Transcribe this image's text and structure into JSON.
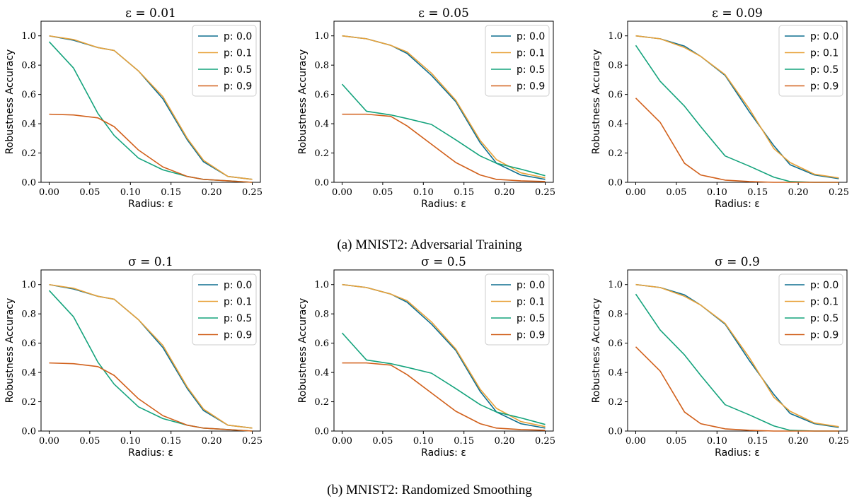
{
  "captions": [
    "(a) MNIST2: Adversarial Training",
    "(b) MNIST2: Randomized Smoothing"
  ],
  "colors": {
    "p: 0.0": "#0e6f8f",
    "p: 0.1": "#e8a23a",
    "p: 0.5": "#14a37c",
    "p: 0.9": "#d1601b"
  },
  "chart_data": [
    {
      "type": "line",
      "group": 0,
      "column": 0,
      "title": "ε = 0.01",
      "xlabel": "Radius: ε",
      "ylabel": "Robustness Accuracy",
      "xlim": [
        -0.01,
        0.26
      ],
      "ylim": [
        0.0,
        1.1
      ],
      "xticks": [
        0.0,
        0.05,
        0.1,
        0.15,
        0.2,
        0.25
      ],
      "xtick_labels": [
        "0.00",
        "0.05",
        "0.10",
        "0.15",
        "0.20",
        "0.25"
      ],
      "yticks": [
        0.0,
        0.2,
        0.4,
        0.6,
        0.8,
        1.0
      ],
      "ytick_labels": [
        "0.0",
        "0.2",
        "0.4",
        "0.6",
        "0.8",
        "1.0"
      ],
      "legend_position": "top-right",
      "x": [
        0.0,
        0.03,
        0.06,
        0.08,
        0.11,
        0.14,
        0.17,
        0.19,
        0.22,
        0.25
      ],
      "series": [
        {
          "name": "p: 0.0",
          "values": [
            1.0,
            0.97,
            0.92,
            0.9,
            0.76,
            0.57,
            0.29,
            0.14,
            0.04,
            0.02
          ]
        },
        {
          "name": "p: 0.1",
          "values": [
            1.0,
            0.975,
            0.92,
            0.9,
            0.76,
            0.585,
            0.3,
            0.15,
            0.04,
            0.02
          ]
        },
        {
          "name": "p: 0.5",
          "values": [
            0.96,
            0.78,
            0.47,
            0.32,
            0.165,
            0.085,
            0.04,
            0.02,
            0.01,
            0.0
          ]
        },
        {
          "name": "p: 0.9",
          "values": [
            0.465,
            0.46,
            0.44,
            0.38,
            0.22,
            0.105,
            0.04,
            0.02,
            0.01,
            0.0
          ]
        }
      ]
    },
    {
      "type": "line",
      "group": 0,
      "column": 1,
      "title": "ε = 0.05",
      "xlabel": "Radius: ε",
      "ylabel": "Robustness Accuracy",
      "xlim": [
        -0.01,
        0.26
      ],
      "ylim": [
        0.0,
        1.1
      ],
      "xticks": [
        0.0,
        0.05,
        0.1,
        0.15,
        0.2,
        0.25
      ],
      "xtick_labels": [
        "0.00",
        "0.05",
        "0.10",
        "0.15",
        "0.20",
        "0.25"
      ],
      "yticks": [
        0.0,
        0.2,
        0.4,
        0.6,
        0.8,
        1.0
      ],
      "ytick_labels": [
        "0.0",
        "0.2",
        "0.4",
        "0.6",
        "0.8",
        "1.0"
      ],
      "legend_position": "top-right",
      "x": [
        0.0,
        0.03,
        0.06,
        0.08,
        0.11,
        0.14,
        0.17,
        0.19,
        0.22,
        0.25
      ],
      "series": [
        {
          "name": "p: 0.0",
          "values": [
            1.0,
            0.98,
            0.935,
            0.88,
            0.73,
            0.55,
            0.27,
            0.13,
            0.05,
            0.02
          ]
        },
        {
          "name": "p: 0.1",
          "values": [
            1.0,
            0.98,
            0.935,
            0.89,
            0.745,
            0.56,
            0.285,
            0.155,
            0.065,
            0.03
          ]
        },
        {
          "name": "p: 0.5",
          "values": [
            0.67,
            0.485,
            0.46,
            0.435,
            0.395,
            0.29,
            0.18,
            0.13,
            0.09,
            0.045
          ]
        },
        {
          "name": "p: 0.9",
          "values": [
            0.465,
            0.465,
            0.45,
            0.385,
            0.26,
            0.135,
            0.05,
            0.02,
            0.01,
            0.005
          ]
        }
      ]
    },
    {
      "type": "line",
      "group": 0,
      "column": 2,
      "title": "ε = 0.09",
      "xlabel": "Radius: ε",
      "ylabel": "Robustness Accuracy",
      "xlim": [
        -0.01,
        0.26
      ],
      "ylim": [
        0.0,
        1.1
      ],
      "xticks": [
        0.0,
        0.05,
        0.1,
        0.15,
        0.2,
        0.25
      ],
      "xtick_labels": [
        "0.00",
        "0.05",
        "0.10",
        "0.15",
        "0.20",
        "0.25"
      ],
      "yticks": [
        0.0,
        0.2,
        0.4,
        0.6,
        0.8,
        1.0
      ],
      "ytick_labels": [
        "0.0",
        "0.2",
        "0.4",
        "0.6",
        "0.8",
        "1.0"
      ],
      "legend_position": "top-right",
      "x": [
        0.0,
        0.03,
        0.06,
        0.08,
        0.11,
        0.14,
        0.17,
        0.19,
        0.22,
        0.25
      ],
      "series": [
        {
          "name": "p: 0.0",
          "values": [
            1.0,
            0.98,
            0.93,
            0.86,
            0.73,
            0.48,
            0.25,
            0.12,
            0.05,
            0.025
          ]
        },
        {
          "name": "p: 0.1",
          "values": [
            1.0,
            0.98,
            0.92,
            0.86,
            0.735,
            0.5,
            0.23,
            0.135,
            0.055,
            0.03
          ]
        },
        {
          "name": "p: 0.5",
          "values": [
            0.935,
            0.69,
            0.52,
            0.38,
            0.18,
            0.11,
            0.035,
            0.005,
            0.0,
            0.0
          ]
        },
        {
          "name": "p: 0.9",
          "values": [
            0.575,
            0.41,
            0.13,
            0.05,
            0.015,
            0.005,
            0.0,
            0.0,
            0.0,
            0.0
          ]
        }
      ]
    },
    {
      "type": "line",
      "group": 1,
      "column": 0,
      "title": "σ = 0.1",
      "xlabel": "Radius: ε",
      "ylabel": "Robustness Accuracy",
      "xlim": [
        -0.01,
        0.26
      ],
      "ylim": [
        0.0,
        1.1
      ],
      "xticks": [
        0.0,
        0.05,
        0.1,
        0.15,
        0.2,
        0.25
      ],
      "xtick_labels": [
        "0.00",
        "0.05",
        "0.10",
        "0.15",
        "0.20",
        "0.25"
      ],
      "yticks": [
        0.0,
        0.2,
        0.4,
        0.6,
        0.8,
        1.0
      ],
      "ytick_labels": [
        "0.0",
        "0.2",
        "0.4",
        "0.6",
        "0.8",
        "1.0"
      ],
      "legend_position": "top-right",
      "x": [
        0.0,
        0.03,
        0.06,
        0.08,
        0.11,
        0.14,
        0.17,
        0.19,
        0.22,
        0.25
      ],
      "series": [
        {
          "name": "p: 0.0",
          "values": [
            1.0,
            0.97,
            0.92,
            0.9,
            0.76,
            0.57,
            0.29,
            0.14,
            0.04,
            0.02
          ]
        },
        {
          "name": "p: 0.1",
          "values": [
            1.0,
            0.975,
            0.92,
            0.9,
            0.76,
            0.585,
            0.3,
            0.15,
            0.04,
            0.02
          ]
        },
        {
          "name": "p: 0.5",
          "values": [
            0.96,
            0.78,
            0.47,
            0.32,
            0.165,
            0.085,
            0.04,
            0.02,
            0.01,
            0.0
          ]
        },
        {
          "name": "p: 0.9",
          "values": [
            0.465,
            0.46,
            0.44,
            0.38,
            0.22,
            0.105,
            0.04,
            0.02,
            0.01,
            0.0
          ]
        }
      ]
    },
    {
      "type": "line",
      "group": 1,
      "column": 1,
      "title": "σ = 0.5",
      "xlabel": "Radius: ε",
      "ylabel": "Robustness Accuracy",
      "xlim": [
        -0.01,
        0.26
      ],
      "ylim": [
        0.0,
        1.1
      ],
      "xticks": [
        0.0,
        0.05,
        0.1,
        0.15,
        0.2,
        0.25
      ],
      "xtick_labels": [
        "0.00",
        "0.05",
        "0.10",
        "0.15",
        "0.20",
        "0.25"
      ],
      "yticks": [
        0.0,
        0.2,
        0.4,
        0.6,
        0.8,
        1.0
      ],
      "ytick_labels": [
        "0.0",
        "0.2",
        "0.4",
        "0.6",
        "0.8",
        "1.0"
      ],
      "legend_position": "top-right",
      "x": [
        0.0,
        0.03,
        0.06,
        0.08,
        0.11,
        0.14,
        0.17,
        0.19,
        0.22,
        0.25
      ],
      "series": [
        {
          "name": "p: 0.0",
          "values": [
            1.0,
            0.98,
            0.935,
            0.88,
            0.73,
            0.55,
            0.27,
            0.13,
            0.05,
            0.02
          ]
        },
        {
          "name": "p: 0.1",
          "values": [
            1.0,
            0.98,
            0.935,
            0.89,
            0.745,
            0.56,
            0.285,
            0.155,
            0.065,
            0.03
          ]
        },
        {
          "name": "p: 0.5",
          "values": [
            0.67,
            0.485,
            0.46,
            0.435,
            0.395,
            0.29,
            0.18,
            0.13,
            0.09,
            0.045
          ]
        },
        {
          "name": "p: 0.9",
          "values": [
            0.465,
            0.465,
            0.45,
            0.385,
            0.26,
            0.135,
            0.05,
            0.02,
            0.01,
            0.005
          ]
        }
      ]
    },
    {
      "type": "line",
      "group": 1,
      "column": 2,
      "title": "σ = 0.9",
      "xlabel": "Radius: ε",
      "ylabel": "Robustness Accuracy",
      "xlim": [
        -0.01,
        0.26
      ],
      "ylim": [
        0.0,
        1.1
      ],
      "xticks": [
        0.0,
        0.05,
        0.1,
        0.15,
        0.2,
        0.25
      ],
      "xtick_labels": [
        "0.00",
        "0.05",
        "0.10",
        "0.15",
        "0.20",
        "0.25"
      ],
      "yticks": [
        0.0,
        0.2,
        0.4,
        0.6,
        0.8,
        1.0
      ],
      "ytick_labels": [
        "0.0",
        "0.2",
        "0.4",
        "0.6",
        "0.8",
        "1.0"
      ],
      "legend_position": "top-right",
      "x": [
        0.0,
        0.03,
        0.06,
        0.08,
        0.11,
        0.14,
        0.17,
        0.19,
        0.22,
        0.25
      ],
      "series": [
        {
          "name": "p: 0.0",
          "values": [
            1.0,
            0.98,
            0.93,
            0.86,
            0.73,
            0.48,
            0.25,
            0.12,
            0.05,
            0.025
          ]
        },
        {
          "name": "p: 0.1",
          "values": [
            1.0,
            0.98,
            0.92,
            0.86,
            0.735,
            0.5,
            0.23,
            0.135,
            0.055,
            0.03
          ]
        },
        {
          "name": "p: 0.5",
          "values": [
            0.935,
            0.69,
            0.52,
            0.38,
            0.18,
            0.11,
            0.035,
            0.005,
            0.0,
            0.0
          ]
        },
        {
          "name": "p: 0.9",
          "values": [
            0.575,
            0.41,
            0.13,
            0.05,
            0.015,
            0.005,
            0.0,
            0.0,
            0.0,
            0.0
          ]
        }
      ]
    }
  ]
}
